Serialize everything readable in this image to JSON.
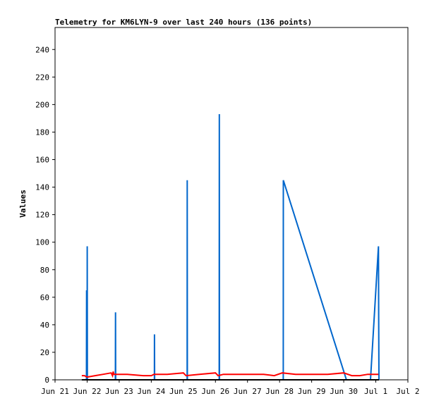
{
  "chart_data": {
    "type": "line",
    "title": "Telemetry for KM6LYN-9 over last 240 hours (136 points)",
    "ylabel": "Values",
    "xlabel": "",
    "ylim": [
      0,
      256
    ],
    "xlim": [
      "2023-06-21",
      "2023-07-02"
    ],
    "x_ticks": [
      "Jun 21",
      "Jun 22",
      "Jun 23",
      "Jun 24",
      "Jun 25",
      "Jun 26",
      "Jun 27",
      "Jun 28",
      "Jun 29",
      "Jun 30",
      "Jul 1",
      "Jul 2"
    ],
    "y_ticks": [
      0,
      20,
      40,
      60,
      80,
      100,
      120,
      140,
      160,
      180,
      200,
      220,
      240
    ],
    "grid": false,
    "series": [
      {
        "color": "#0066cc",
        "points": [
          [
            "2023-06-21T20:00",
            0
          ],
          [
            "2023-06-21T23:30",
            0
          ],
          [
            "2023-06-21T23:35",
            65
          ],
          [
            "2023-06-21T23:40",
            0
          ],
          [
            "2023-06-22T00:00",
            0
          ],
          [
            "2023-06-22T00:05",
            97
          ],
          [
            "2023-06-22T00:10",
            0
          ],
          [
            "2023-06-22T21:10",
            0
          ],
          [
            "2023-06-22T21:15",
            49
          ],
          [
            "2023-06-22T21:20",
            0
          ],
          [
            "2023-06-24T02:20",
            0
          ],
          [
            "2023-06-24T02:25",
            33
          ],
          [
            "2023-06-24T02:30",
            0
          ],
          [
            "2023-06-25T02:50",
            0
          ],
          [
            "2023-06-25T02:55",
            145
          ],
          [
            "2023-06-25T03:00",
            0
          ],
          [
            "2023-06-26T02:50",
            0
          ],
          [
            "2023-06-26T02:55",
            193
          ],
          [
            "2023-06-26T03:00",
            0
          ],
          [
            "2023-06-28T02:45",
            0
          ],
          [
            "2023-06-28T02:50",
            145
          ],
          [
            "2023-06-30T02:00",
            0
          ],
          [
            "2023-06-30T20:00",
            0
          ],
          [
            "2023-07-01T02:00",
            97
          ],
          [
            "2023-07-01T02:10",
            47
          ],
          [
            "2023-07-01T02:20",
            0
          ]
        ]
      },
      {
        "color": "#ff0000",
        "points": [
          [
            "2023-06-21T20:00",
            3
          ],
          [
            "2023-06-21T22:00",
            3
          ],
          [
            "2023-06-22T00:00",
            2
          ],
          [
            "2023-06-22T06:00",
            3
          ],
          [
            "2023-06-22T12:00",
            4
          ],
          [
            "2023-06-22T18:00",
            5
          ],
          [
            "2023-06-22T19:00",
            3
          ],
          [
            "2023-06-22T19:30",
            6
          ],
          [
            "2023-06-22T20:00",
            4
          ],
          [
            "2023-06-23T06:00",
            4
          ],
          [
            "2023-06-23T18:00",
            3
          ],
          [
            "2023-06-24T00:00",
            3
          ],
          [
            "2023-06-24T02:00",
            4
          ],
          [
            "2023-06-24T12:00",
            4
          ],
          [
            "2023-06-25T00:00",
            5
          ],
          [
            "2023-06-25T02:00",
            3
          ],
          [
            "2023-06-25T12:00",
            4
          ],
          [
            "2023-06-26T00:00",
            5
          ],
          [
            "2023-06-26T02:00",
            3
          ],
          [
            "2023-06-26T06:00",
            4
          ],
          [
            "2023-06-27T00:00",
            4
          ],
          [
            "2023-06-27T12:00",
            4
          ],
          [
            "2023-06-27T20:00",
            3
          ],
          [
            "2023-06-28T02:00",
            5
          ],
          [
            "2023-06-28T12:00",
            4
          ],
          [
            "2023-06-29T00:00",
            4
          ],
          [
            "2023-06-29T12:00",
            4
          ],
          [
            "2023-06-30T00:00",
            5
          ],
          [
            "2023-06-30T06:00",
            3
          ],
          [
            "2023-06-30T12:00",
            3
          ],
          [
            "2023-06-30T18:00",
            4
          ],
          [
            "2023-07-01T00:00",
            4
          ],
          [
            "2023-07-01T02:00",
            4
          ]
        ]
      },
      {
        "color": "#000000",
        "points": [
          [
            "2023-06-21T20:00",
            0
          ],
          [
            "2023-07-01T02:20",
            0
          ]
        ]
      }
    ]
  }
}
